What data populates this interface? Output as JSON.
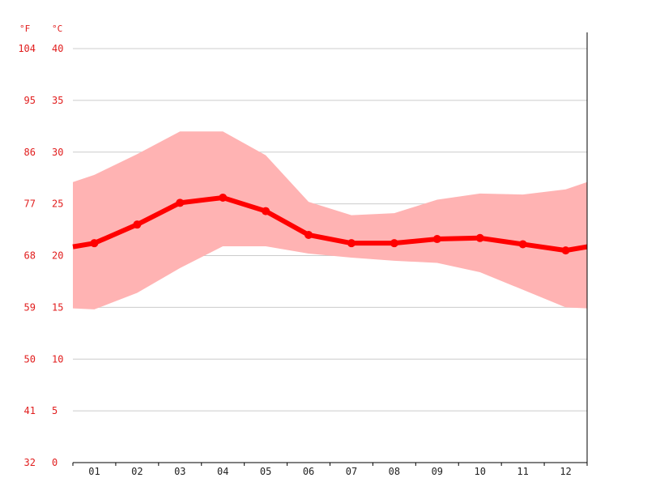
{
  "chart_data": {
    "type": "line",
    "units": {
      "fahrenheit": "°F",
      "celsius": "°C"
    },
    "y_ticks_c": [
      "40",
      "35",
      "30",
      "25",
      "20",
      "15",
      "10",
      "5",
      "0"
    ],
    "y_ticks_f": [
      "104",
      "95",
      "86",
      "77",
      "68",
      "59",
      "50",
      "41",
      "32"
    ],
    "ylim": [
      0,
      40
    ],
    "grid": true,
    "categories": [
      "01",
      "02",
      "03",
      "04",
      "05",
      "06",
      "07",
      "08",
      "09",
      "10",
      "11",
      "12"
    ],
    "series": [
      {
        "role": "mean",
        "values": [
          21.2,
          23.0,
          25.1,
          25.6,
          24.3,
          22.0,
          21.2,
          21.2,
          21.6,
          21.7,
          21.1,
          20.5
        ]
      },
      {
        "role": "max",
        "values": [
          27.8,
          29.8,
          32.0,
          32.0,
          29.7,
          25.2,
          23.9,
          24.1,
          25.4,
          26.0,
          25.9,
          26.4
        ]
      },
      {
        "role": "min",
        "values": [
          14.8,
          16.4,
          18.8,
          20.9,
          20.9,
          20.2,
          19.8,
          19.5,
          19.3,
          18.4,
          16.7,
          15.0
        ]
      }
    ],
    "colors": {
      "band": "#ffb3b3",
      "line": "#ff0000",
      "axis_text": "#e11d1d",
      "grid": "#cccccc"
    }
  }
}
